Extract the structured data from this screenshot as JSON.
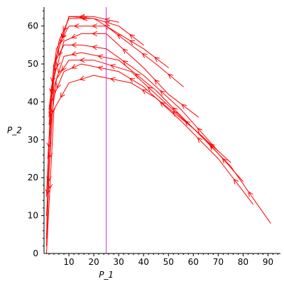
{
  "chart_data": {
    "type": "line",
    "title": "",
    "xlabel": "P_1",
    "ylabel": "P_2",
    "xlim": [
      0,
      95
    ],
    "ylim": [
      0,
      65
    ],
    "xticks": [
      10,
      20,
      30,
      40,
      50,
      60,
      70,
      80,
      90
    ],
    "yticks": [
      0,
      10,
      20,
      30,
      40,
      50,
      60
    ],
    "grid": false,
    "colors": {
      "trajectory": "#ff0000",
      "reference_line": "#cc33cc",
      "axis": "#000000"
    },
    "reference_line": {
      "x": 25
    },
    "series": [
      {
        "points": [
          [
            91,
            8
          ],
          [
            75,
            23
          ],
          [
            60,
            33
          ],
          [
            45,
            41
          ],
          [
            35,
            45
          ],
          [
            20,
            47
          ],
          [
            10,
            45
          ],
          [
            4,
            38
          ],
          [
            1,
            0
          ]
        ]
      },
      {
        "points": [
          [
            84,
            13
          ],
          [
            70,
            25
          ],
          [
            55,
            35
          ],
          [
            40,
            44
          ],
          [
            30,
            48
          ],
          [
            15,
            50
          ],
          [
            8,
            48
          ],
          [
            3,
            40
          ],
          [
            1,
            2
          ]
        ]
      },
      {
        "points": [
          [
            80,
            19
          ],
          [
            65,
            30
          ],
          [
            50,
            39
          ],
          [
            35,
            48
          ],
          [
            20,
            51
          ],
          [
            10,
            51
          ],
          [
            5,
            46
          ],
          [
            2,
            30
          ],
          [
            1,
            4
          ]
        ]
      },
      {
        "points": [
          [
            75,
            24
          ],
          [
            60,
            33
          ],
          [
            45,
            43
          ],
          [
            30,
            51
          ],
          [
            15,
            53
          ],
          [
            8,
            52
          ],
          [
            4,
            44
          ],
          [
            1,
            10
          ]
        ]
      },
      {
        "points": [
          [
            70,
            27
          ],
          [
            55,
            38
          ],
          [
            40,
            47
          ],
          [
            25,
            54
          ],
          [
            15,
            55
          ],
          [
            8,
            55
          ],
          [
            4,
            50
          ],
          [
            1.5,
            25
          ]
        ]
      },
      {
        "points": [
          [
            62,
            36
          ],
          [
            50,
            42
          ],
          [
            40,
            49
          ],
          [
            25,
            58
          ],
          [
            15,
            58
          ],
          [
            8,
            56
          ],
          [
            3,
            44
          ],
          [
            1,
            15
          ]
        ]
      },
      {
        "points": [
          [
            56,
            44
          ],
          [
            45,
            50
          ],
          [
            35,
            55
          ],
          [
            25,
            60
          ],
          [
            15,
            60
          ],
          [
            10,
            60
          ],
          [
            5,
            54
          ],
          [
            2,
            38
          ]
        ]
      },
      {
        "points": [
          [
            50,
            49
          ],
          [
            40,
            54
          ],
          [
            30,
            58
          ],
          [
            20,
            62
          ],
          [
            12,
            62
          ],
          [
            10,
            62
          ],
          [
            6,
            56
          ],
          [
            3,
            42
          ]
        ]
      },
      {
        "points": [
          [
            40,
            55
          ],
          [
            30,
            60
          ],
          [
            20,
            62
          ],
          [
            10,
            62.5
          ],
          [
            4,
            50
          ],
          [
            2,
            36
          ]
        ]
      },
      {
        "points": [
          [
            30,
            61
          ],
          [
            20,
            62.5
          ],
          [
            10,
            62.5
          ],
          [
            5,
            52
          ],
          [
            2,
            34
          ]
        ]
      }
    ]
  }
}
